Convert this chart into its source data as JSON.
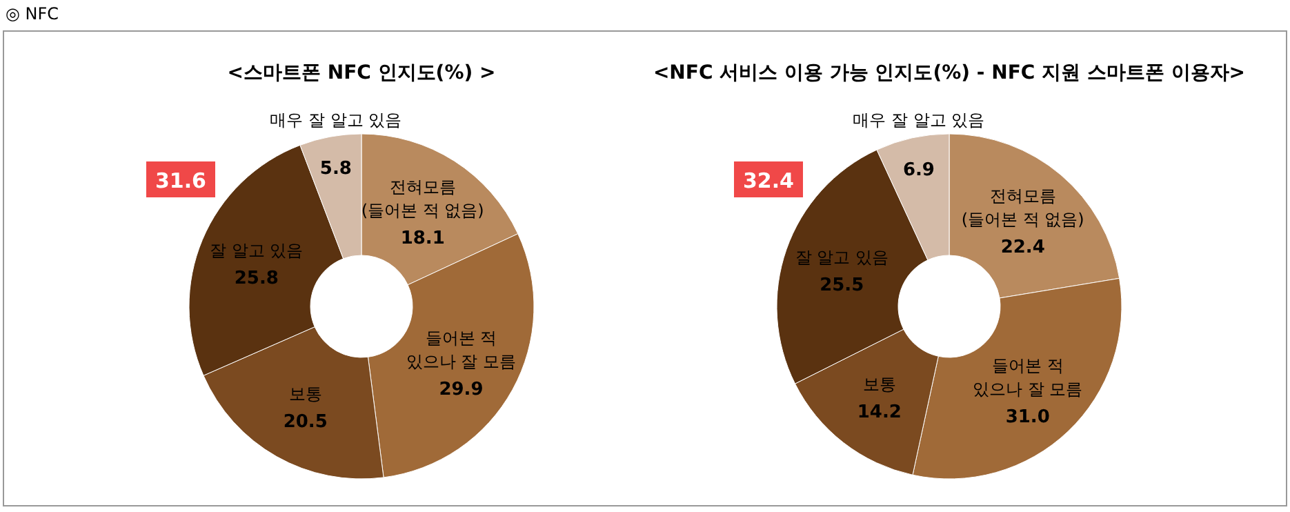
{
  "chart_data": [
    {
      "type": "donut",
      "title": "<스마트폰 NFC 인지도(%) >",
      "categories": [
        "전혀모름\n(들어본 적 없음)",
        "들어본 적\n있으나 잘 모름",
        "보통",
        "잘 알고 있음",
        "매우 잘 알고 있음"
      ],
      "values": [
        18.1,
        29.9,
        20.5,
        25.8,
        5.8
      ],
      "value_labels": [
        "18.1",
        "29.9",
        "20.5",
        "25.8",
        "5.8"
      ],
      "colors": [
        "#b98a5e",
        "#a06a38",
        "#7b4a20",
        "#5a3210",
        "#d4bba8"
      ],
      "annotations": [
        "31.6",
        "◎ NFC"
      ]
    },
    {
      "type": "donut",
      "title": "<NFC 서비스 이용 가능 인지도(%) - NFC 지원 스마트폰 이용자>",
      "categories": [
        "전혀모름\n(들어본 적 없음)",
        "들어본 적\n있으나 잘 모름",
        "보통",
        "잘 알고 있음",
        "매우 잘 알고 있음"
      ],
      "values": [
        22.4,
        31.0,
        14.2,
        25.5,
        6.9
      ],
      "value_labels": [
        "22.4",
        "31.0",
        "14.2",
        "25.5",
        "6.9"
      ],
      "colors": [
        "#b98a5e",
        "#a06a38",
        "#7b4a20",
        "#5a3210",
        "#d4bba8"
      ],
      "annotations": [
        "32.4"
      ]
    }
  ]
}
